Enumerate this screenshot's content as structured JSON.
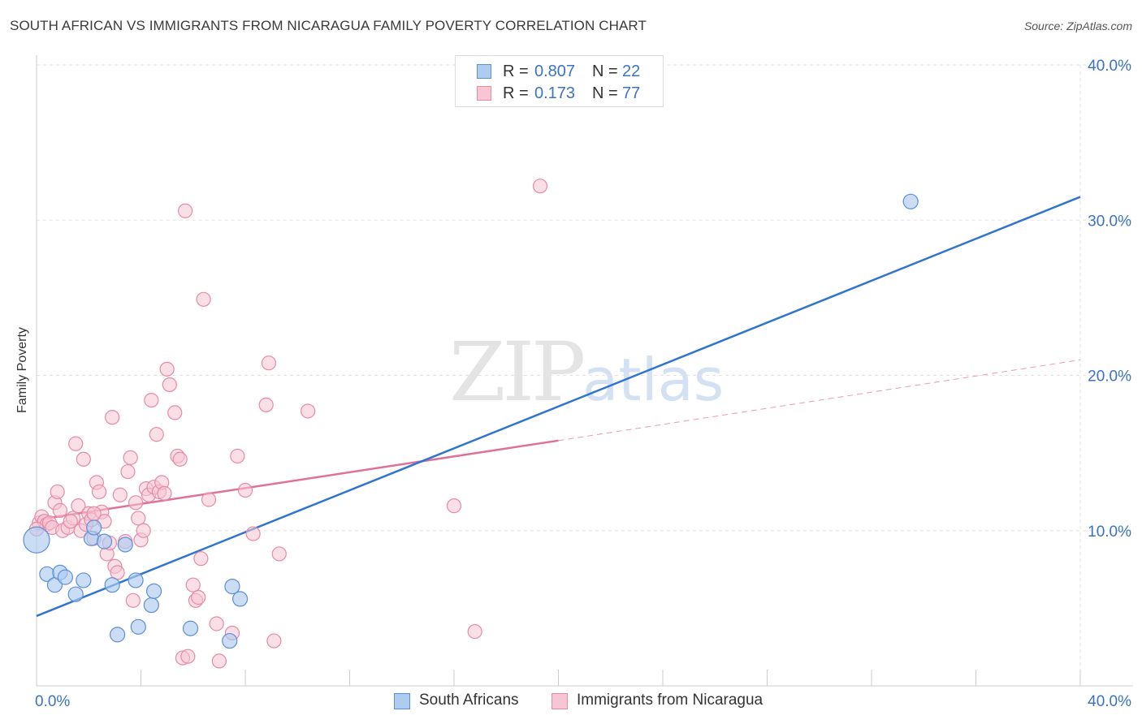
{
  "header": {
    "title": "SOUTH AFRICAN VS IMMIGRANTS FROM NICARAGUA FAMILY POVERTY CORRELATION CHART",
    "source": "Source: ZipAtlas.com"
  },
  "watermark": {
    "part1": "ZIP",
    "part2": "atlas"
  },
  "legend_top": {
    "rows": [
      {
        "r_label": "R =",
        "r_value": "0.807",
        "n_label": "N =",
        "n_value": "22"
      },
      {
        "r_label": "R =",
        "r_value": "0.173",
        "n_label": "N =",
        "n_value": "77"
      }
    ]
  },
  "legend_bottom": {
    "items": [
      {
        "label": "South Africans"
      },
      {
        "label": "Immigrants from Nicaragua"
      }
    ]
  },
  "colors": {
    "blue_fill": "#aecbf0",
    "blue_stroke": "#5b8fd6",
    "blue_line": "#2f74cf",
    "pink_fill": "#f7c5d3",
    "pink_stroke": "#e68aa6",
    "pink_line": "#e0709a",
    "axis_label": "#3a73c4",
    "grid": "#e3e3e3"
  },
  "chart_data": {
    "type": "scatter",
    "title": "SOUTH AFRICAN VS IMMIGRANTS FROM NICARAGUA FAMILY POVERTY CORRELATION CHART",
    "xlabel": "",
    "ylabel": "Family Poverty",
    "xlim": [
      0,
      40
    ],
    "ylim": [
      0,
      40
    ],
    "x_tick_labels": [
      {
        "value": 0,
        "label": "0.0%"
      },
      {
        "value": 40,
        "label": "40.0%"
      }
    ],
    "y_tick_labels": [
      {
        "value": 10,
        "label": "10.0%"
      },
      {
        "value": 20,
        "label": "20.0%"
      },
      {
        "value": 30,
        "label": "30.0%"
      },
      {
        "value": 40,
        "label": "40.0%"
      }
    ],
    "series": [
      {
        "name": "South Africans",
        "r": 0.807,
        "n": 22,
        "trend": {
          "x0": 0,
          "y0": 4.5,
          "x1": 40,
          "y1": 31.5
        },
        "points": [
          [
            0.0,
            9.4
          ],
          [
            0.4,
            7.2
          ],
          [
            0.7,
            6.5
          ],
          [
            0.9,
            7.3
          ],
          [
            1.1,
            7.0
          ],
          [
            1.5,
            5.9
          ],
          [
            1.8,
            6.8
          ],
          [
            2.1,
            9.5
          ],
          [
            2.2,
            10.2
          ],
          [
            2.6,
            9.3
          ],
          [
            2.9,
            6.5
          ],
          [
            3.1,
            3.3
          ],
          [
            3.4,
            9.1
          ],
          [
            3.8,
            6.8
          ],
          [
            3.9,
            3.8
          ],
          [
            4.4,
            5.2
          ],
          [
            4.5,
            6.1
          ],
          [
            5.9,
            3.7
          ],
          [
            7.4,
            2.9
          ],
          [
            7.5,
            6.4
          ],
          [
            7.8,
            5.6
          ],
          [
            33.5,
            31.2
          ]
        ],
        "point_sizes": [
          16,
          9,
          9,
          9,
          9,
          9,
          9,
          9,
          9,
          9,
          9,
          9,
          9,
          9,
          9,
          9,
          9,
          9,
          9,
          9,
          9,
          9
        ]
      },
      {
        "name": "Immigrants from Nicaragua",
        "r": 0.173,
        "n": 77,
        "trend": {
          "x0": 0,
          "y0": 10.7,
          "x1": 20,
          "y1": 15.8,
          "dashed_to": {
            "x": 40,
            "y": 21.0
          }
        },
        "points": [
          [
            0.1,
            10.5
          ],
          [
            0.2,
            10.9
          ],
          [
            0.3,
            10.6
          ],
          [
            0.4,
            10.4
          ],
          [
            0.5,
            10.5
          ],
          [
            0.6,
            10.2
          ],
          [
            0.7,
            11.8
          ],
          [
            0.8,
            12.5
          ],
          [
            0.9,
            11.3
          ],
          [
            1.0,
            10.0
          ],
          [
            1.2,
            10.2
          ],
          [
            1.4,
            10.8
          ],
          [
            1.5,
            15.6
          ],
          [
            1.6,
            11.6
          ],
          [
            1.7,
            10.0
          ],
          [
            1.8,
            14.6
          ],
          [
            1.9,
            10.4
          ],
          [
            2.0,
            11.1
          ],
          [
            2.1,
            10.7
          ],
          [
            2.2,
            9.5
          ],
          [
            2.3,
            13.1
          ],
          [
            2.4,
            12.5
          ],
          [
            2.5,
            11.2
          ],
          [
            2.6,
            10.6
          ],
          [
            2.7,
            8.5
          ],
          [
            2.8,
            9.2
          ],
          [
            2.9,
            17.3
          ],
          [
            3.0,
            7.7
          ],
          [
            3.1,
            7.3
          ],
          [
            3.2,
            12.3
          ],
          [
            3.4,
            9.3
          ],
          [
            3.5,
            13.8
          ],
          [
            3.6,
            14.7
          ],
          [
            3.7,
            5.5
          ],
          [
            3.8,
            11.8
          ],
          [
            3.9,
            10.8
          ],
          [
            4.0,
            9.4
          ],
          [
            4.1,
            10.0
          ],
          [
            4.2,
            12.7
          ],
          [
            4.3,
            12.3
          ],
          [
            4.4,
            18.4
          ],
          [
            4.5,
            12.8
          ],
          [
            4.6,
            16.2
          ],
          [
            4.7,
            12.5
          ],
          [
            4.8,
            13.1
          ],
          [
            4.9,
            12.4
          ],
          [
            5.0,
            20.4
          ],
          [
            5.1,
            19.4
          ],
          [
            5.3,
            17.6
          ],
          [
            5.4,
            14.8
          ],
          [
            5.5,
            14.6
          ],
          [
            5.6,
            1.8
          ],
          [
            5.7,
            30.6
          ],
          [
            5.8,
            1.9
          ],
          [
            6.0,
            6.5
          ],
          [
            6.1,
            5.5
          ],
          [
            6.2,
            5.7
          ],
          [
            6.3,
            8.2
          ],
          [
            6.4,
            24.9
          ],
          [
            6.6,
            12.0
          ],
          [
            6.9,
            4.0
          ],
          [
            7.0,
            1.6
          ],
          [
            7.5,
            3.4
          ],
          [
            7.7,
            14.8
          ],
          [
            8.0,
            12.6
          ],
          [
            8.3,
            9.8
          ],
          [
            8.9,
            20.8
          ],
          [
            8.8,
            18.1
          ],
          [
            9.1,
            2.9
          ],
          [
            9.3,
            8.5
          ],
          [
            10.4,
            17.7
          ],
          [
            16.0,
            11.6
          ],
          [
            16.8,
            3.5
          ],
          [
            19.3,
            32.2
          ],
          [
            0.0,
            10.1
          ],
          [
            1.3,
            10.6
          ],
          [
            2.2,
            11.1
          ]
        ],
        "point_sizes": "uniform"
      }
    ]
  }
}
